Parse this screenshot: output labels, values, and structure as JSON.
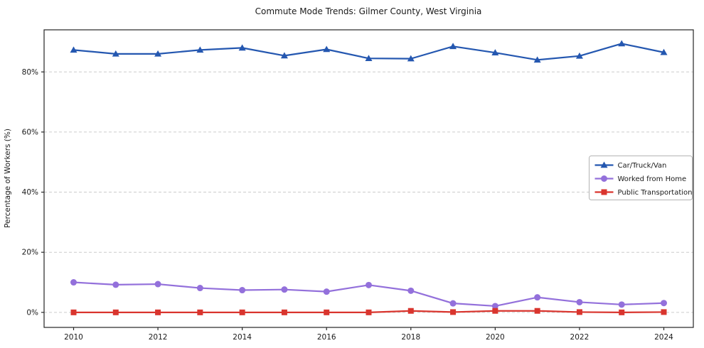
{
  "page": {
    "background": "#ffffff"
  },
  "chart_data": {
    "type": "line",
    "title": "Commute Mode Trends: Gilmer County, West Virginia",
    "xlabel": "",
    "ylabel": "Percentage of Workers (%)",
    "x": [
      2010,
      2011,
      2012,
      2013,
      2014,
      2015,
      2016,
      2017,
      2018,
      2019,
      2020,
      2021,
      2022,
      2023,
      2024
    ],
    "xticks": [
      2010,
      2012,
      2014,
      2016,
      2018,
      2020,
      2022,
      2024
    ],
    "yticks": [
      0,
      20,
      40,
      60,
      80
    ],
    "ytick_suffix": "%",
    "xlim": [
      2009.3,
      2024.7
    ],
    "ylim": [
      -5,
      94
    ],
    "grid": true,
    "legend_position": "center right",
    "series": [
      {
        "name": "Car/Truck/Van",
        "color": "#2457b0",
        "marker": "triangle",
        "values": [
          87.3,
          86.0,
          86.0,
          87.3,
          88.0,
          85.4,
          87.5,
          84.5,
          84.4,
          88.5,
          86.4,
          84.0,
          85.3,
          89.4,
          86.5
        ]
      },
      {
        "name": "Worked from Home",
        "color": "#9370db",
        "marker": "circle",
        "values": [
          10.0,
          9.2,
          9.4,
          8.1,
          7.4,
          7.6,
          6.9,
          9.1,
          7.2,
          3.0,
          2.1,
          5.0,
          3.4,
          2.6,
          3.1
        ]
      },
      {
        "name": "Public Transportation",
        "color": "#d9352e",
        "marker": "square",
        "values": [
          0.0,
          0.0,
          0.0,
          0.0,
          0.0,
          0.0,
          0.0,
          0.0,
          0.5,
          0.1,
          0.5,
          0.5,
          0.1,
          0.0,
          0.1
        ]
      }
    ],
    "colors": {
      "grid": "#cccccc",
      "spine": "#262626",
      "text": "#1a1a1a",
      "legend_border": "#b3b3b3",
      "legend_bg": "#ffffff"
    }
  }
}
